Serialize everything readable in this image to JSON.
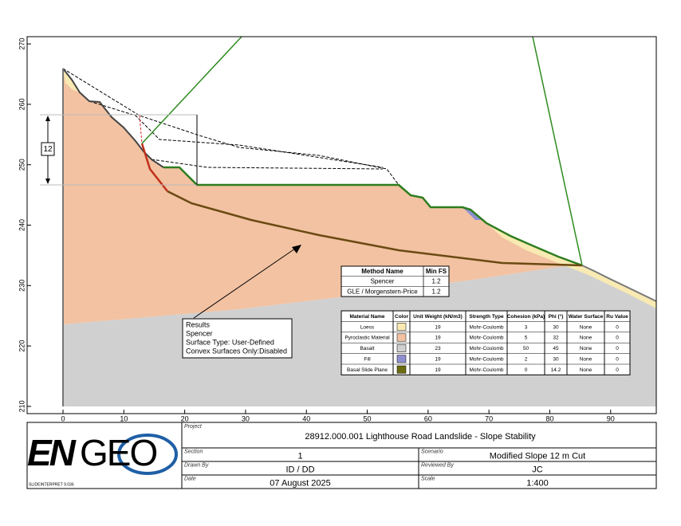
{
  "axes": {
    "xlim": [
      -5.9,
      97.5
    ],
    "ylim": [
      208.8,
      271.2
    ],
    "x_ticks": [
      0,
      10,
      20,
      30,
      40,
      50,
      60,
      70,
      80,
      90
    ],
    "y_ticks": [
      210,
      220,
      230,
      240,
      250,
      260,
      270
    ]
  },
  "dimension_label": "12",
  "results": [
    "Results",
    "Spencer",
    "Surface Type: User-Defined",
    "Convex Surfaces Only:Disabled"
  ],
  "method_table": {
    "header": [
      "Method Name",
      "Min FS"
    ],
    "rows": [
      [
        "Spencer",
        1.2
      ],
      [
        "GLE / Morgenstern-Price",
        1.2
      ]
    ]
  },
  "material_table": {
    "header": [
      "Material Name",
      "Color",
      "Unit Weight (kN/m3)",
      "Strength Type",
      "Cohesion (kPa)",
      "Phi (°)",
      "Water Surface",
      "Ru Value"
    ],
    "rows": [
      [
        "Loess",
        "#f8eab2",
        19,
        "Mohr-Coulomb",
        3,
        30,
        "None",
        0
      ],
      [
        "Pyroclastic Material",
        "#f2c2a2",
        19,
        "Mohr-Coulomb",
        5,
        32,
        "None",
        0
      ],
      [
        "Basalt",
        "#d0d0d0",
        23,
        "Mohr-Coulomb",
        50,
        45,
        "None",
        0
      ],
      [
        "Fill",
        "#8f8fd0",
        19,
        "Mohr-Coulomb",
        2,
        30,
        "None",
        0
      ],
      [
        "Basal Slide Plane",
        "#6b6b10",
        19,
        "Mohr-Coulomb",
        0,
        14.2,
        "None",
        0
      ]
    ]
  },
  "title_block": {
    "logo": [
      "EN",
      "GEO"
    ],
    "version": "SLIDEINTERPRET 9.036",
    "project": {
      "label": "Project",
      "value": "28912.000.001 Lighthouse Road Landslide - Slope Stability"
    },
    "fields": [
      {
        "label": "Section",
        "value": "1"
      },
      {
        "label": "Scenario",
        "value": "Modified Slope 12 m Cut"
      },
      {
        "label": "Drawn By",
        "value": "ID / DD"
      },
      {
        "label": "Reviewed By",
        "value": "JC"
      },
      {
        "label": "Date",
        "value": "07 August 2025"
      },
      {
        "label": "Scale",
        "value": "1:400"
      }
    ]
  }
}
